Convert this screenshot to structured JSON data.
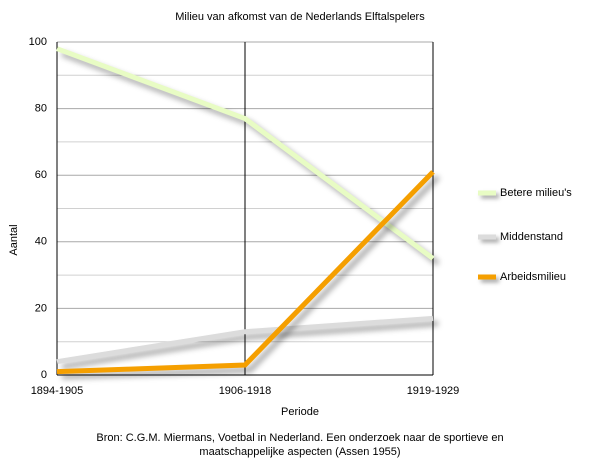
{
  "chart_data": {
    "type": "line",
    "title": "Milieu van afkomst van de Nederlands Elftalspelers",
    "x_label": "Periode",
    "y_label": "Aantal",
    "categories": [
      "1894-1905",
      "1906-1918",
      "1919-1929"
    ],
    "series": [
      {
        "name": "Betere milieu's",
        "color": "#e8fcc4",
        "values": [
          98,
          77,
          35
        ]
      },
      {
        "name": "Middenstand",
        "color": "#dcdcdc",
        "values": [
          4,
          13,
          17
        ]
      },
      {
        "name": "Arbeidsmilieu",
        "color": "#f59f00",
        "values": [
          1,
          3,
          61
        ]
      }
    ],
    "ylim": [
      0,
      100
    ],
    "yticks": [
      0,
      20,
      40,
      60,
      80,
      100
    ],
    "minor_grid": [
      10,
      30,
      50,
      70,
      90
    ],
    "grid": true,
    "legend": "right",
    "source": [
      "Bron: C.G.M. Miermans, Voetbal in Nederland. Een onderzoek naar de sportieve en",
      "maatschappelijke aspecten (Assen 1955)"
    ]
  }
}
